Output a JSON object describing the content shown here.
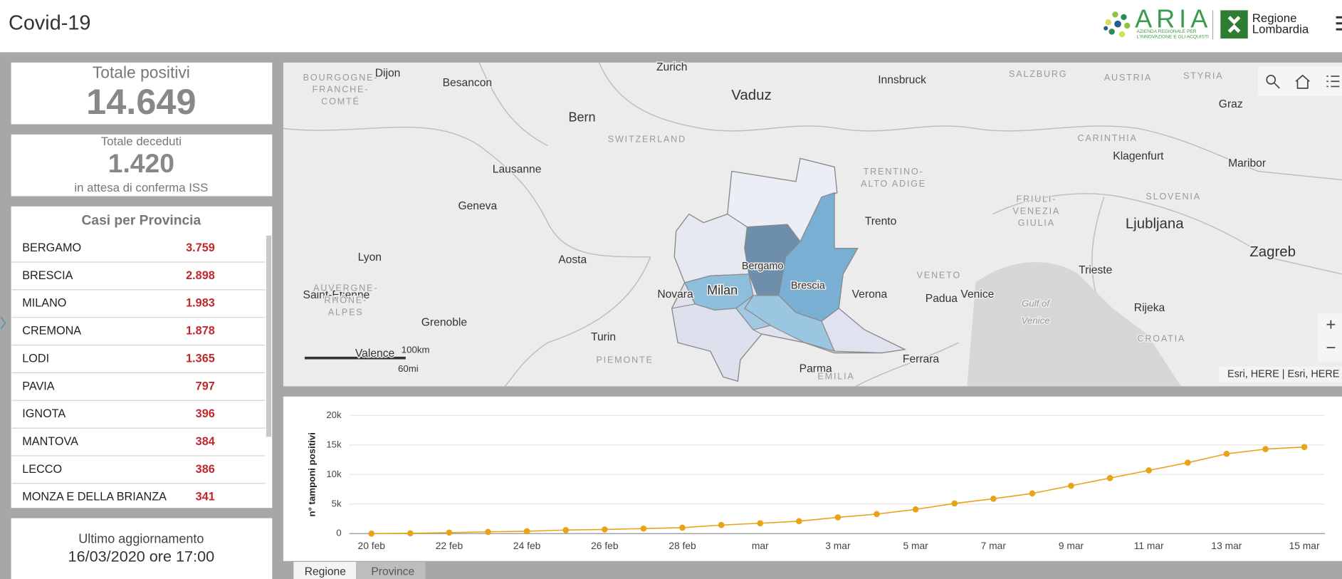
{
  "header": {
    "title": "Covid-19",
    "logo_text": "ARIA",
    "logo_subtitle_1": "AZIENDA REGIONALE PER",
    "logo_subtitle_2": "L'INNOVAZIONE E GLI ACQUISTI",
    "region_1": "Regione",
    "region_2": "Lombardia"
  },
  "positives": {
    "label": "Totale positivi",
    "value": "14.649"
  },
  "deaths": {
    "label": "Totale deceduti",
    "value": "1.420",
    "note": "in attesa di conferma ISS"
  },
  "provinces": {
    "title": "Casi per Provincia",
    "rows": [
      {
        "name": "BERGAMO",
        "cases": "3.759"
      },
      {
        "name": "BRESCIA",
        "cases": "2.898"
      },
      {
        "name": "MILANO",
        "cases": "1.983"
      },
      {
        "name": "CREMONA",
        "cases": "1.878"
      },
      {
        "name": "LODI",
        "cases": "1.365"
      },
      {
        "name": "PAVIA",
        "cases": "797"
      },
      {
        "name": "IGNOTA",
        "cases": "396"
      },
      {
        "name": "MANTOVA",
        "cases": "384"
      },
      {
        "name": "LECCO",
        "cases": "386"
      },
      {
        "name": "MONZA E DELLA BRIANZA",
        "cases": "341"
      }
    ]
  },
  "update": {
    "label": "Ultimo aggiornamento",
    "value": "16/03/2020 ore 17:00"
  },
  "map": {
    "labels": [
      "Dijon",
      "Zurich",
      "Vaduz",
      "Innsbruck",
      "SALZBURG",
      "AUSTRIA",
      "STYRIA",
      "Besancon",
      "BOURGOGNE-",
      "FRANCHE-",
      "COMTÉ",
      "Bern",
      "SWITZERLAND",
      "Graz",
      "CARINTHIA",
      "Klagenfurt",
      "Maribor",
      "Lausanne",
      "TRENTINO-",
      "ALTO ADIGE",
      "SLOVENIA",
      "Geneva",
      "Trento",
      "FRIULI-",
      "VENEZIA",
      "GIULIA",
      "Ljubljana",
      "Lyon",
      "Aosta",
      "Zagreb",
      "Bergamo",
      "VENETO",
      "Trieste",
      "Brescia",
      "Milan",
      "Saint-Etienne",
      "AUVERGNE-",
      "RHÔNE-",
      "ALPES",
      "Novara",
      "Verona",
      "Padua",
      "Venice",
      "Gulf of",
      "Venice",
      "Rijeka",
      "Grenoble",
      "CROATIA",
      "Turin",
      "Valence",
      "PIEMONTE",
      "Ferrara",
      "Parma",
      "EMILIA"
    ],
    "scale_km": "100km",
    "scale_mi": "60mi",
    "attribution": "Esri, HERE | Esri, HERE",
    "zoom_in": "+",
    "zoom_out": "−"
  },
  "tabs": [
    "Regione",
    "Province"
  ],
  "chart_data": {
    "type": "line",
    "y_label": "n° tamponi positivi",
    "categories": [
      "20 feb",
      null,
      "22 feb",
      null,
      "24 feb",
      null,
      "26 feb",
      null,
      "28 feb",
      null,
      "mar",
      null,
      "3 mar",
      null,
      "5 mar",
      null,
      "7 mar",
      null,
      "9 mar",
      null,
      "11 mar",
      null,
      "13 mar",
      null,
      "15 mar"
    ],
    "series": [
      {
        "name": "n° tamponi positivi",
        "color": "#e8a317",
        "values": [
          0,
          50,
          170,
          300,
          400,
          600,
          700,
          850,
          1000,
          1450,
          1750,
          2100,
          2750,
          3300,
          4100,
          5100,
          5900,
          6800,
          8100,
          9400,
          10700,
          12000,
          13500,
          14300,
          14650
        ]
      }
    ],
    "ylim": [
      0,
      20000
    ],
    "yticks": [
      0,
      {
        "value": 5000,
        "label": "5k"
      },
      {
        "value": 10000,
        "label": "10k"
      },
      {
        "value": 15000,
        "label": "15k"
      },
      {
        "value": 20000,
        "label": "20k"
      }
    ],
    "grid": true
  }
}
